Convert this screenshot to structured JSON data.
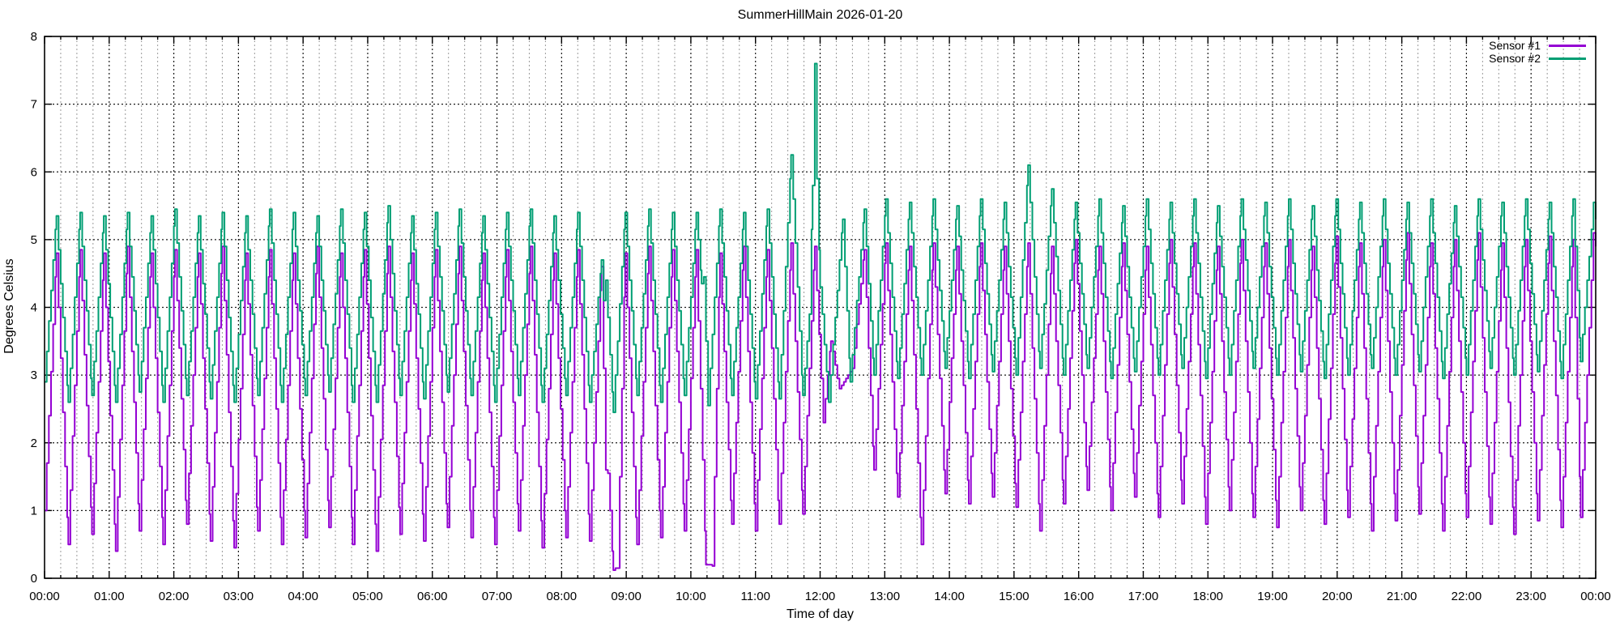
{
  "title": "SummerHillMain 2026-01-20",
  "chart_data": {
    "type": "line",
    "title": "SummerHillMain 2026-01-20",
    "xlabel": "Time of day",
    "ylabel": "Degrees Celsius",
    "x_unit": "minutes_since_midnight",
    "xlim": [
      0,
      1440
    ],
    "ylim": [
      0,
      8
    ],
    "xtick_labels": [
      "00:00",
      "01:00",
      "02:00",
      "03:00",
      "04:00",
      "05:00",
      "06:00",
      "07:00",
      "08:00",
      "09:00",
      "10:00",
      "11:00",
      "12:00",
      "13:00",
      "14:00",
      "15:00",
      "16:00",
      "17:00",
      "18:00",
      "19:00",
      "20:00",
      "21:00",
      "22:00",
      "23:00",
      "00:00"
    ],
    "xtick_interval_minutes": 60,
    "minor_xtick_interval_minutes": 15,
    "ytick_labels": [
      "0",
      "1",
      "2",
      "3",
      "4",
      "5",
      "6",
      "7",
      "8"
    ],
    "yticks": [
      0,
      1,
      2,
      3,
      4,
      5,
      6,
      7,
      8
    ],
    "grid": {
      "major_x": true,
      "minor_x": true,
      "major_y": true,
      "minor_y": false
    },
    "legend_position": "top-right-inside",
    "colors": {
      "major_grid": "#1a1a1a",
      "minor_grid": "#9a9a9a",
      "border": "#000000"
    },
    "series": [
      {
        "name": "Sensor #1",
        "color": "#9400d3",
        "points": [
          [
            0,
            1.0
          ],
          [
            11,
            4.8
          ],
          [
            22,
            0.5
          ],
          [
            33,
            4.85
          ],
          [
            44,
            0.65
          ],
          [
            55,
            4.8
          ],
          [
            66,
            0.4
          ],
          [
            77,
            4.9
          ],
          [
            88,
            0.7
          ],
          [
            99,
            4.8
          ],
          [
            110,
            0.5
          ],
          [
            121,
            4.85
          ],
          [
            132,
            0.8
          ],
          [
            143,
            4.8
          ],
          [
            154,
            0.55
          ],
          [
            165,
            4.9
          ],
          [
            176,
            0.45
          ],
          [
            187,
            4.8
          ],
          [
            198,
            0.7
          ],
          [
            209,
            4.85
          ],
          [
            220,
            0.5
          ],
          [
            231,
            4.8
          ],
          [
            242,
            0.6
          ],
          [
            253,
            4.9
          ],
          [
            264,
            0.75
          ],
          [
            275,
            4.8
          ],
          [
            286,
            0.5
          ],
          [
            297,
            4.85
          ],
          [
            308,
            0.4
          ],
          [
            319,
            4.9
          ],
          [
            330,
            0.65
          ],
          [
            341,
            4.8
          ],
          [
            352,
            0.55
          ],
          [
            363,
            4.85
          ],
          [
            374,
            0.75
          ],
          [
            385,
            4.9
          ],
          [
            396,
            0.6
          ],
          [
            407,
            4.8
          ],
          [
            418,
            0.5
          ],
          [
            429,
            4.85
          ],
          [
            440,
            0.7
          ],
          [
            451,
            4.9
          ],
          [
            462,
            0.45
          ],
          [
            473,
            4.8
          ],
          [
            484,
            0.6
          ],
          [
            495,
            4.85
          ],
          [
            506,
            0.55
          ],
          [
            517,
            4.6
          ],
          [
            521,
            1.6
          ],
          [
            523,
            1.55
          ],
          [
            528,
            0.12
          ],
          [
            532,
            0.15
          ],
          [
            539,
            4.8
          ],
          [
            550,
            0.5
          ],
          [
            561,
            4.9
          ],
          [
            572,
            0.6
          ],
          [
            583,
            4.85
          ],
          [
            594,
            0.7
          ],
          [
            605,
            4.85
          ],
          [
            614,
            0.2
          ],
          [
            620,
            0.18
          ],
          [
            627,
            4.8
          ],
          [
            638,
            0.8
          ],
          [
            649,
            4.9
          ],
          [
            660,
            0.7
          ],
          [
            671,
            4.85
          ],
          [
            682,
            0.8
          ],
          [
            693,
            4.95
          ],
          [
            704,
            0.95
          ],
          [
            715,
            4.9
          ],
          [
            723,
            2.3
          ],
          [
            730,
            3.5
          ],
          [
            738,
            2.8
          ],
          [
            750,
            3.1
          ],
          [
            761,
            4.85
          ],
          [
            770,
            1.6
          ],
          [
            781,
            4.95
          ],
          [
            792,
            1.2
          ],
          [
            803,
            4.9
          ],
          [
            814,
            0.5
          ],
          [
            825,
            4.95
          ],
          [
            836,
            1.25
          ],
          [
            847,
            4.9
          ],
          [
            858,
            1.1
          ],
          [
            869,
            4.95
          ],
          [
            880,
            1.2
          ],
          [
            891,
            4.9
          ],
          [
            902,
            1.05
          ],
          [
            913,
            4.95
          ],
          [
            924,
            0.7
          ],
          [
            935,
            4.9
          ],
          [
            946,
            1.1
          ],
          [
            957,
            5.0
          ],
          [
            968,
            1.3
          ],
          [
            979,
            4.9
          ],
          [
            990,
            1.0
          ],
          [
            1001,
            4.95
          ],
          [
            1012,
            1.2
          ],
          [
            1023,
            4.9
          ],
          [
            1034,
            0.9
          ],
          [
            1045,
            5.0
          ],
          [
            1056,
            1.1
          ],
          [
            1067,
            4.95
          ],
          [
            1078,
            0.8
          ],
          [
            1089,
            4.9
          ],
          [
            1100,
            1.0
          ],
          [
            1111,
            5.0
          ],
          [
            1122,
            0.9
          ],
          [
            1133,
            4.95
          ],
          [
            1144,
            0.75
          ],
          [
            1155,
            5.0
          ],
          [
            1166,
            1.0
          ],
          [
            1177,
            4.9
          ],
          [
            1188,
            0.8
          ],
          [
            1199,
            5.05
          ],
          [
            1210,
            0.9
          ],
          [
            1221,
            4.95
          ],
          [
            1232,
            0.7
          ],
          [
            1243,
            5.0
          ],
          [
            1254,
            0.85
          ],
          [
            1265,
            5.1
          ],
          [
            1276,
            0.95
          ],
          [
            1287,
            4.95
          ],
          [
            1298,
            0.7
          ],
          [
            1309,
            5.0
          ],
          [
            1320,
            0.9
          ],
          [
            1331,
            5.1
          ],
          [
            1342,
            0.8
          ],
          [
            1353,
            4.95
          ],
          [
            1364,
            0.65
          ],
          [
            1375,
            5.0
          ],
          [
            1386,
            0.85
          ],
          [
            1397,
            5.05
          ],
          [
            1408,
            0.75
          ],
          [
            1419,
            5.0
          ],
          [
            1426,
            0.9
          ],
          [
            1438,
            5.1
          ],
          [
            1440,
            4.9
          ]
        ]
      },
      {
        "name": "Sensor #2",
        "color": "#009e73",
        "points": [
          [
            0,
            2.9
          ],
          [
            11,
            5.35
          ],
          [
            22,
            2.6
          ],
          [
            33,
            5.4
          ],
          [
            44,
            2.7
          ],
          [
            55,
            5.35
          ],
          [
            66,
            2.6
          ],
          [
            77,
            5.4
          ],
          [
            88,
            2.75
          ],
          [
            99,
            5.35
          ],
          [
            110,
            2.6
          ],
          [
            121,
            5.45
          ],
          [
            132,
            2.7
          ],
          [
            143,
            5.35
          ],
          [
            154,
            2.65
          ],
          [
            165,
            5.4
          ],
          [
            176,
            2.6
          ],
          [
            187,
            5.35
          ],
          [
            198,
            2.7
          ],
          [
            209,
            5.45
          ],
          [
            220,
            2.6
          ],
          [
            231,
            5.4
          ],
          [
            242,
            2.7
          ],
          [
            253,
            5.35
          ],
          [
            264,
            2.75
          ],
          [
            275,
            5.45
          ],
          [
            286,
            2.6
          ],
          [
            297,
            5.4
          ],
          [
            308,
            2.6
          ],
          [
            319,
            5.5
          ],
          [
            330,
            2.7
          ],
          [
            341,
            5.35
          ],
          [
            352,
            2.65
          ],
          [
            363,
            5.4
          ],
          [
            374,
            2.75
          ],
          [
            385,
            5.45
          ],
          [
            396,
            2.7
          ],
          [
            407,
            5.35
          ],
          [
            418,
            2.6
          ],
          [
            429,
            5.4
          ],
          [
            440,
            2.7
          ],
          [
            451,
            5.45
          ],
          [
            462,
            2.6
          ],
          [
            473,
            5.35
          ],
          [
            484,
            2.7
          ],
          [
            495,
            5.4
          ],
          [
            506,
            2.6
          ],
          [
            517,
            4.7
          ],
          [
            519,
            4.1
          ],
          [
            521,
            4.4
          ],
          [
            528,
            2.45
          ],
          [
            539,
            5.4
          ],
          [
            550,
            2.7
          ],
          [
            561,
            5.45
          ],
          [
            572,
            2.6
          ],
          [
            583,
            5.4
          ],
          [
            594,
            2.7
          ],
          [
            605,
            5.4
          ],
          [
            610,
            4.35
          ],
          [
            612,
            4.45
          ],
          [
            616,
            2.55
          ],
          [
            627,
            5.45
          ],
          [
            638,
            2.7
          ],
          [
            649,
            5.4
          ],
          [
            660,
            2.65
          ],
          [
            671,
            5.45
          ],
          [
            682,
            2.65
          ],
          [
            693,
            6.25
          ],
          [
            704,
            2.7
          ],
          [
            710,
            3.9
          ],
          [
            713,
            5.8
          ],
          [
            715,
            7.6
          ],
          [
            717,
            5.9
          ],
          [
            720,
            4.3
          ],
          [
            728,
            2.6
          ],
          [
            741,
            5.3
          ],
          [
            748,
            2.9
          ],
          [
            761,
            5.45
          ],
          [
            770,
            3.0
          ],
          [
            781,
            5.6
          ],
          [
            792,
            2.95
          ],
          [
            803,
            5.55
          ],
          [
            814,
            3.0
          ],
          [
            825,
            5.6
          ],
          [
            836,
            3.1
          ],
          [
            847,
            5.5
          ],
          [
            858,
            2.95
          ],
          [
            869,
            5.6
          ],
          [
            880,
            3.05
          ],
          [
            891,
            5.55
          ],
          [
            902,
            3.0
          ],
          [
            913,
            6.1
          ],
          [
            924,
            3.1
          ],
          [
            935,
            5.75
          ],
          [
            946,
            3.0
          ],
          [
            957,
            5.55
          ],
          [
            968,
            3.1
          ],
          [
            979,
            5.6
          ],
          [
            990,
            2.95
          ],
          [
            1001,
            5.5
          ],
          [
            1012,
            3.05
          ],
          [
            1023,
            5.6
          ],
          [
            1034,
            3.0
          ],
          [
            1045,
            5.55
          ],
          [
            1056,
            3.1
          ],
          [
            1067,
            5.6
          ],
          [
            1078,
            2.95
          ],
          [
            1089,
            5.5
          ],
          [
            1100,
            3.0
          ],
          [
            1111,
            5.6
          ],
          [
            1122,
            3.1
          ],
          [
            1133,
            5.55
          ],
          [
            1144,
            3.0
          ],
          [
            1155,
            5.6
          ],
          [
            1166,
            3.05
          ],
          [
            1177,
            5.5
          ],
          [
            1188,
            2.95
          ],
          [
            1199,
            5.6
          ],
          [
            1210,
            3.0
          ],
          [
            1221,
            5.55
          ],
          [
            1232,
            3.1
          ],
          [
            1243,
            5.6
          ],
          [
            1254,
            3.0
          ],
          [
            1265,
            5.55
          ],
          [
            1276,
            3.05
          ],
          [
            1287,
            5.6
          ],
          [
            1298,
            2.95
          ],
          [
            1309,
            5.5
          ],
          [
            1320,
            3.0
          ],
          [
            1331,
            5.6
          ],
          [
            1342,
            3.1
          ],
          [
            1353,
            5.55
          ],
          [
            1364,
            3.0
          ],
          [
            1375,
            5.6
          ],
          [
            1386,
            3.05
          ],
          [
            1397,
            5.55
          ],
          [
            1408,
            2.95
          ],
          [
            1419,
            5.6
          ],
          [
            1426,
            3.2
          ],
          [
            1438,
            5.55
          ],
          [
            1440,
            5.3
          ]
        ]
      }
    ]
  },
  "legend": {
    "items": [
      {
        "label": "Sensor #1"
      },
      {
        "label": "Sensor #2"
      }
    ]
  }
}
